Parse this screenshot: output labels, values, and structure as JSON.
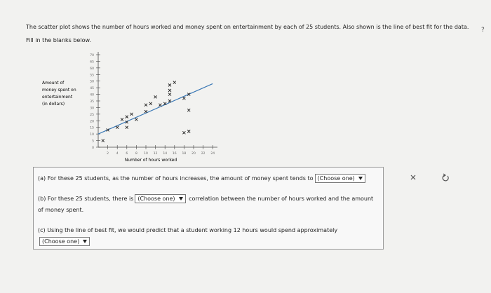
{
  "header": {
    "text": "The scatter plot shows the number of hours worked and money spent on entertainment by each of 25 students. Also shown is the line of best fit for the data.",
    "instruction": "Fill in the blanks below.",
    "help": "?"
  },
  "chart_data": {
    "type": "scatter",
    "y_label": [
      "Amount of",
      "money spent on",
      "entertainment",
      "(in dollars)"
    ],
    "x_label": "Number of hours worked",
    "x": [
      1,
      2,
      4,
      6,
      5,
      6,
      7,
      8,
      6,
      10,
      11,
      12,
      13,
      14,
      15,
      15,
      15,
      15,
      16,
      18,
      19,
      18,
      19,
      19,
      10
    ],
    "y": [
      5,
      13,
      15,
      15,
      21,
      23,
      25,
      21,
      19,
      32,
      33,
      38,
      32,
      33,
      35,
      43,
      47,
      40,
      49,
      37,
      12,
      11,
      28,
      40,
      27
    ],
    "line": {
      "x": [
        0,
        24
      ],
      "y": [
        10,
        48
      ]
    },
    "color": "#222222",
    "line_color": "#3a78b5",
    "xlim": [
      0,
      25
    ],
    "ylim": [
      0,
      70
    ],
    "xticks": [
      2,
      4,
      6,
      8,
      10,
      12,
      14,
      16,
      18,
      20,
      22,
      24
    ],
    "yticks": [
      0,
      5,
      10,
      15,
      20,
      25,
      30,
      35,
      40,
      45,
      50,
      55,
      60,
      65,
      70
    ]
  },
  "questions": [
    {
      "label": "(a)",
      "before": "For these 25 students, as the number of hours increases, the amount of money spent tends to",
      "dropdown": "(Choose one)"
    },
    {
      "label": "(b)",
      "before": "For these 25 students, there is",
      "dropdown": "(Choose one)",
      "after": "correlation between the number of hours worked and the amount of money spent."
    },
    {
      "label": "(c)",
      "before": "Using the line of best fit, we would predict that a student working 12 hours would spend approximately",
      "dropdown": "(Choose one)"
    }
  ]
}
